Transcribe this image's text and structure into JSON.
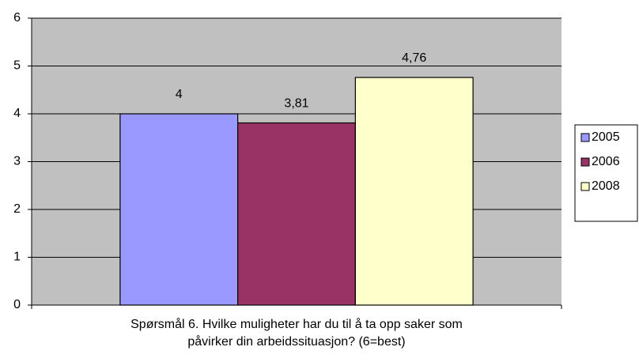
{
  "chart_data": {
    "type": "bar",
    "x_label": "Spørsmål 6. Hvilke muligheter har du til å ta opp saker som påvirker din arbeidssituasjon? (6=best)",
    "categories": [
      null
    ],
    "series": [
      {
        "name": "2005",
        "color": "#9999ff",
        "values": [
          4
        ],
        "value_labels": [
          "4"
        ]
      },
      {
        "name": "2006",
        "color": "#993366",
        "values": [
          3.81
        ],
        "value_labels": [
          "3,81"
        ]
      },
      {
        "name": "2008",
        "color": "#ffffcc",
        "values": [
          4.76
        ],
        "value_labels": [
          "4,76"
        ]
      }
    ],
    "ylim": [
      0,
      6
    ],
    "yticks": [
      0,
      1,
      2,
      3,
      4,
      5,
      6
    ],
    "grid": true,
    "legend": "right"
  }
}
